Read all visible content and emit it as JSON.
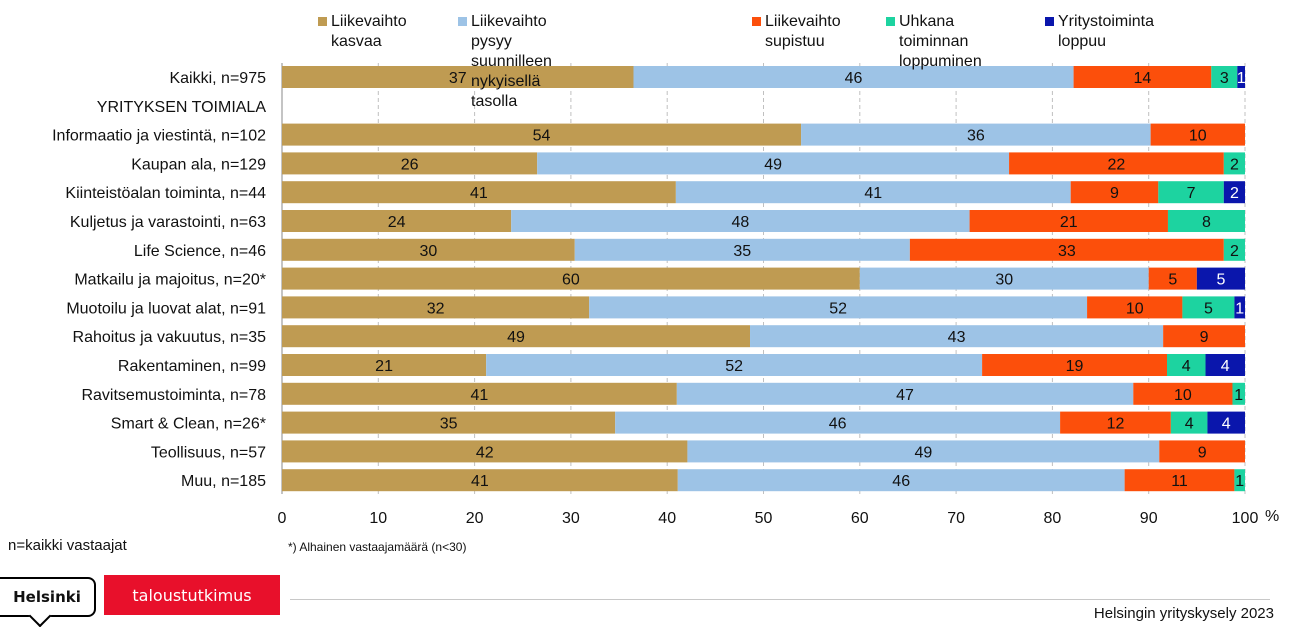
{
  "chart_data": {
    "type": "bar",
    "orientation": "horizontal",
    "stacked": true,
    "categories": [
      "Kaikki, n=975",
      "YRITYKSEN TOIMIALA",
      "Informaatio ja viestintä, n=102",
      "Kaupan ala, n=129",
      "Kiinteistöalan toiminta, n=44",
      "Kuljetus ja varastointi, n=63",
      "Life Science, n=46",
      "Matkailu ja majoitus, n=20*",
      "Muotoilu ja luovat alat, n=91",
      "Rahoitus ja vakuutus, n=35",
      "Rakentaminen, n=99",
      "Ravitsemustoiminta, n=78",
      "Smart & Clean, n=26*",
      "Teollisuus, n=57",
      "Muu, n=185"
    ],
    "series": [
      {
        "name": "Liikevaihto\nkasvaa",
        "color": "#bf9b52",
        "values": [
          36.5,
          null,
          53.9,
          26.5,
          40.9,
          23.8,
          30.4,
          60,
          31.9,
          48.6,
          21.2,
          41,
          34.6,
          42.1,
          41.1
        ]
      },
      {
        "name": "Liikevaihto pysyy suunnilleen\nnykyisellä tasolla",
        "color": "#9dc3e6",
        "values": [
          45.7,
          null,
          36.3,
          49,
          41,
          47.6,
          34.8,
          30,
          51.7,
          42.9,
          51.5,
          47.4,
          46.2,
          49,
          46.4
        ]
      },
      {
        "name": "Liikevaihto\nsupistuu",
        "color": "#fc4f0b",
        "values": [
          14.3,
          null,
          9.8,
          22.3,
          9.1,
          20.6,
          32.6,
          5,
          9.9,
          8.5,
          19.2,
          10.3,
          11.5,
          8.9,
          11.4
        ]
      },
      {
        "name": "Uhkana toiminnan\nloppuminen",
        "color": "#1dd3a0",
        "values": [
          2.7,
          null,
          0,
          2.2,
          6.8,
          8,
          2.2,
          0,
          5.4,
          0,
          4,
          1.3,
          3.8,
          0,
          1.1
        ]
      },
      {
        "name": "Yritystoiminta\nloppuu",
        "color": "#0a16ac",
        "values": [
          0.8,
          null,
          0,
          0,
          2.2,
          0,
          0,
          5,
          1.1,
          0,
          4.1,
          0,
          3.9,
          0,
          0
        ]
      }
    ],
    "labels": [
      [
        "37",
        null,
        "54",
        "26",
        "41",
        "24",
        "30",
        "60",
        "32",
        "49",
        "21",
        "41",
        "35",
        "42",
        "41"
      ],
      [
        "46",
        null,
        "36",
        "49",
        "41",
        "48",
        "35",
        "30",
        "52",
        "43",
        "52",
        "47",
        "46",
        "49",
        "46"
      ],
      [
        "14",
        null,
        "10",
        "22",
        "9",
        "21",
        "33",
        "5",
        "10",
        "9",
        "19",
        "10",
        "12",
        "9",
        "11"
      ],
      [
        "3",
        null,
        null,
        "2",
        "7",
        "8",
        "2",
        null,
        "5",
        null,
        "4",
        "1",
        "4",
        null,
        "1"
      ],
      [
        "1",
        null,
        null,
        null,
        "2",
        null,
        null,
        "5",
        "1",
        null,
        "4",
        null,
        "4",
        null,
        null
      ]
    ],
    "xticks": [
      "0",
      "10",
      "20",
      "30",
      "40",
      "50",
      "60",
      "70",
      "80",
      "90",
      "100"
    ],
    "xlim": [
      0,
      100
    ],
    "x_unit": "%",
    "grid": "vertical dashed",
    "legend": "top"
  },
  "footnote_n": "n=kaikki vastaajat",
  "footnote_low": "*) Alhainen vastaajamäärä (n<30)",
  "logo_helsinki": "Helsinki",
  "logo_unit": "taloustutkimus",
  "source": "Helsingin yrityskysely 2023"
}
